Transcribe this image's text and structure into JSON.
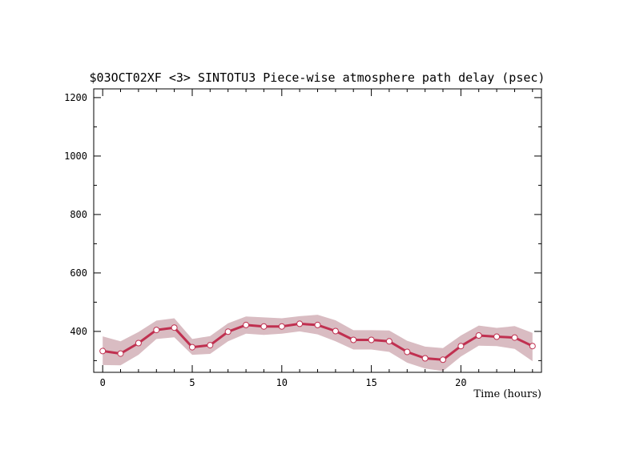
{
  "chart_data": {
    "type": "line",
    "title": "$03OCT02XF <3>  SINTOTU3  Piece-wise atmosphere path delay (psec)",
    "xlabel": "Time (hours)",
    "ylabel": "",
    "xlim": [
      -0.5,
      24.5
    ],
    "ylim": [
      260,
      1230
    ],
    "x_ticks": [
      0,
      5,
      10,
      15,
      20
    ],
    "y_ticks": [
      400,
      600,
      800,
      1000,
      1200
    ],
    "grid": false,
    "legend": "none",
    "colors": {
      "line": "#c03050",
      "band": "#d9bcc2",
      "marker_fill": "#ffffff",
      "axis": "#000000"
    },
    "series": [
      {
        "x": [
          0,
          1,
          2,
          3,
          4,
          5,
          6,
          7,
          8,
          9,
          10,
          11,
          12,
          13,
          14,
          15,
          16,
          17,
          18,
          19,
          20,
          21,
          22,
          23,
          24
        ],
        "values": [
          333,
          324,
          360,
          405,
          413,
          346,
          353,
          399,
          422,
          417,
          417,
          426,
          422,
          401,
          371,
          371,
          366,
          330,
          308,
          303,
          350,
          386,
          382,
          379,
          350
        ],
        "upper": [
          383,
          366,
          398,
          437,
          445,
          374,
          384,
          428,
          451,
          448,
          445,
          452,
          457,
          438,
          404,
          404,
          403,
          368,
          348,
          343,
          386,
          420,
          412,
          418,
          395
        ],
        "lower": [
          285,
          284,
          320,
          374,
          380,
          320,
          323,
          366,
          392,
          388,
          392,
          400,
          390,
          366,
          338,
          338,
          330,
          293,
          273,
          264,
          314,
          351,
          350,
          340,
          298
        ]
      }
    ]
  }
}
